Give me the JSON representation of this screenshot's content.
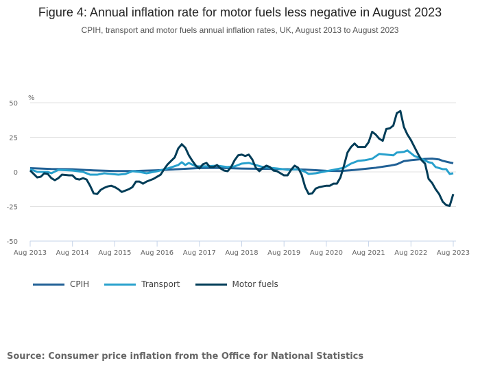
{
  "chart_data": {
    "type": "line",
    "title": "Figure 4: Annual inflation rate for motor fuels less negative in August 2023",
    "subtitle": "CPIH, transport and motor fuels annual inflation rates, UK, August 2013 to August 2023",
    "ylabel": "%",
    "ylim": [
      -50,
      50
    ],
    "yticks": [
      "50",
      "25",
      "0",
      "-25",
      "-50"
    ],
    "ytick_values": [
      50,
      25,
      0,
      -25,
      -50
    ],
    "xlim_months_since_aug_2013": [
      0,
      120
    ],
    "xticks": [
      "Aug 2013",
      "Aug 2014",
      "Aug 2015",
      "Aug 2016",
      "Aug 2017",
      "Aug 2018",
      "Aug 2019",
      "Aug 2020",
      "Aug 2021",
      "Aug 2022",
      "Aug 2023"
    ],
    "grid": true,
    "legend_position": "bottom-left",
    "series": [
      {
        "name": "CPIH",
        "color": "#206095",
        "points": [
          [
            0,
            2.7
          ],
          [
            6,
            2.1
          ],
          [
            12,
            1.9
          ],
          [
            18,
            1.1
          ],
          [
            24,
            0.6
          ],
          [
            30,
            0.7
          ],
          [
            36,
            1.2
          ],
          [
            42,
            2.0
          ],
          [
            48,
            2.8
          ],
          [
            54,
            2.9
          ],
          [
            60,
            2.4
          ],
          [
            66,
            2.2
          ],
          [
            72,
            2.0
          ],
          [
            78,
            1.7
          ],
          [
            84,
            0.8
          ],
          [
            88,
            0.6
          ],
          [
            92,
            1.4
          ],
          [
            96,
            2.5
          ],
          [
            98,
            3.0
          ],
          [
            102,
            4.5
          ],
          [
            104,
            5.5
          ],
          [
            106,
            7.8
          ],
          [
            108,
            8.5
          ],
          [
            110,
            9.0
          ],
          [
            112,
            9.4
          ],
          [
            114,
            9.6
          ],
          [
            116,
            9.0
          ],
          [
            117,
            8.0
          ],
          [
            119,
            6.8
          ],
          [
            120,
            6.3
          ]
        ]
      },
      {
        "name": "Transport",
        "color": "#27a0cc",
        "points": [
          [
            0,
            2
          ],
          [
            2,
            0
          ],
          [
            5,
            0
          ],
          [
            6,
            -1
          ],
          [
            8,
            1.5
          ],
          [
            12,
            1
          ],
          [
            15,
            0
          ],
          [
            17,
            -2
          ],
          [
            19,
            -2
          ],
          [
            21,
            -1
          ],
          [
            23,
            -1.5
          ],
          [
            25,
            -2
          ],
          [
            27,
            -1.5
          ],
          [
            29,
            0.5
          ],
          [
            31,
            0
          ],
          [
            33,
            -1
          ],
          [
            36,
            0.5
          ],
          [
            39,
            2.5
          ],
          [
            42,
            5
          ],
          [
            43,
            7
          ],
          [
            44,
            5
          ],
          [
            45,
            6.5
          ],
          [
            47,
            4
          ],
          [
            50,
            4
          ],
          [
            53,
            4.5
          ],
          [
            56,
            3.5
          ],
          [
            58,
            4
          ],
          [
            60,
            6
          ],
          [
            62,
            6.5
          ],
          [
            64,
            5
          ],
          [
            66,
            3.5
          ],
          [
            68,
            3
          ],
          [
            70,
            2.5
          ],
          [
            73,
            1.5
          ],
          [
            76,
            2
          ],
          [
            78,
            0
          ],
          [
            79,
            -1.5
          ],
          [
            81,
            -1
          ],
          [
            83,
            0
          ],
          [
            85,
            1
          ],
          [
            87,
            2
          ],
          [
            89,
            3
          ],
          [
            91,
            6
          ],
          [
            93,
            8
          ],
          [
            95,
            8.5
          ],
          [
            97,
            9.5
          ],
          [
            99,
            13
          ],
          [
            101,
            12.5
          ],
          [
            103,
            12
          ],
          [
            104,
            14
          ],
          [
            106,
            14.5
          ],
          [
            107,
            15.5
          ],
          [
            109,
            11.5
          ],
          [
            111,
            9.5
          ],
          [
            113,
            7
          ],
          [
            114,
            6.5
          ],
          [
            115,
            3.5
          ],
          [
            117,
            2
          ],
          [
            118,
            2
          ],
          [
            119,
            -1.5
          ],
          [
            120,
            -1
          ]
        ]
      },
      {
        "name": "Motor fuels",
        "color": "#003c57",
        "points": [
          [
            0,
            1
          ],
          [
            2,
            -4
          ],
          [
            3,
            -3.5
          ],
          [
            4,
            -1
          ],
          [
            5,
            -1.5
          ],
          [
            6,
            -4.5
          ],
          [
            7,
            -6
          ],
          [
            8,
            -4.5
          ],
          [
            9,
            -2
          ],
          [
            11,
            -2.5
          ],
          [
            12,
            -2.5
          ],
          [
            13,
            -5
          ],
          [
            14,
            -5.5
          ],
          [
            15,
            -4.5
          ],
          [
            16,
            -5.5
          ],
          [
            17,
            -10
          ],
          [
            18,
            -15.5
          ],
          [
            19,
            -16
          ],
          [
            20,
            -13
          ],
          [
            21,
            -11.5
          ],
          [
            22,
            -10.5
          ],
          [
            23,
            -10
          ],
          [
            24,
            -11
          ],
          [
            25,
            -12.5
          ],
          [
            26,
            -14.5
          ],
          [
            27,
            -13.5
          ],
          [
            28,
            -12.5
          ],
          [
            29,
            -11
          ],
          [
            30,
            -7
          ],
          [
            31,
            -7
          ],
          [
            32,
            -8.5
          ],
          [
            33,
            -7
          ],
          [
            34,
            -6
          ],
          [
            35,
            -5
          ],
          [
            36,
            -3.5
          ],
          [
            37,
            -2
          ],
          [
            38,
            2
          ],
          [
            39,
            5.5
          ],
          [
            40,
            8
          ],
          [
            41,
            10.5
          ],
          [
            42,
            17
          ],
          [
            43,
            20
          ],
          [
            44,
            17.5
          ],
          [
            45,
            12
          ],
          [
            46,
            8
          ],
          [
            47,
            4.5
          ],
          [
            48,
            2.5
          ],
          [
            49,
            5.5
          ],
          [
            50,
            6.5
          ],
          [
            51,
            3.5
          ],
          [
            52,
            3.5
          ],
          [
            53,
            5
          ],
          [
            54,
            2.5
          ],
          [
            55,
            1
          ],
          [
            56,
            0.5
          ],
          [
            57,
            3.5
          ],
          [
            58,
            8.5
          ],
          [
            59,
            12
          ],
          [
            60,
            12.5
          ],
          [
            61,
            11.5
          ],
          [
            62,
            12.5
          ],
          [
            63,
            9
          ],
          [
            64,
            3
          ],
          [
            65,
            0.5
          ],
          [
            66,
            3
          ],
          [
            67,
            4.5
          ],
          [
            68,
            3.5
          ],
          [
            69,
            1
          ],
          [
            70,
            0.5
          ],
          [
            71,
            -1
          ],
          [
            72,
            -2.5
          ],
          [
            73,
            -2.5
          ],
          [
            74,
            1.5
          ],
          [
            75,
            4.5
          ],
          [
            76,
            3
          ],
          [
            77,
            -2
          ],
          [
            78,
            -11
          ],
          [
            79,
            -16
          ],
          [
            80,
            -15.5
          ],
          [
            81,
            -12
          ],
          [
            82,
            -11
          ],
          [
            83,
            -10.5
          ],
          [
            84,
            -10
          ],
          [
            85,
            -10
          ],
          [
            86,
            -8.5
          ],
          [
            87,
            -8.5
          ],
          [
            88,
            -4
          ],
          [
            89,
            4.5
          ],
          [
            90,
            14
          ],
          [
            91,
            18
          ],
          [
            92,
            20.5
          ],
          [
            93,
            18
          ],
          [
            94,
            18
          ],
          [
            95,
            18
          ],
          [
            96,
            21.5
          ],
          [
            97,
            29
          ],
          [
            98,
            27
          ],
          [
            99,
            24
          ],
          [
            100,
            22.5
          ],
          [
            101,
            31
          ],
          [
            102,
            31.5
          ],
          [
            103,
            33.5
          ],
          [
            104,
            42.5
          ],
          [
            105,
            44
          ],
          [
            106,
            32.5
          ],
          [
            107,
            27
          ],
          [
            108,
            23
          ],
          [
            109,
            18
          ],
          [
            110,
            13
          ],
          [
            111,
            8.5
          ],
          [
            112,
            6
          ],
          [
            113,
            -5
          ],
          [
            114,
            -8
          ],
          [
            115,
            -12.5
          ],
          [
            116,
            -16
          ],
          [
            117,
            -21.5
          ],
          [
            118,
            -24
          ],
          [
            119,
            -24.5
          ],
          [
            120,
            -16
          ]
        ]
      }
    ]
  },
  "source": "Source: Consumer price inflation from the Office for National Statistics"
}
